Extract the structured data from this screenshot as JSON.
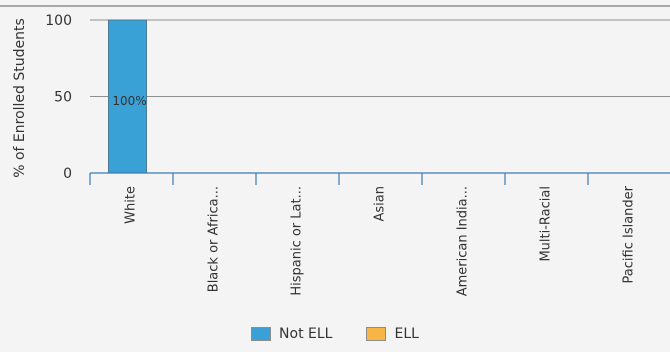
{
  "chart_data": {
    "type": "bar",
    "categories": [
      "White",
      "Black or Africa...",
      "Hispanic or Lat...",
      "Asian",
      "American India...",
      "Multi-Racial",
      "Pacific Islander"
    ],
    "series": [
      {
        "name": "Not ELL",
        "values": [
          100,
          0,
          0,
          0,
          0,
          0,
          0
        ],
        "color": "#3aa1d6"
      },
      {
        "name": "ELL",
        "values": [
          0,
          0,
          0,
          0,
          0,
          0,
          0
        ],
        "color": "#f6b545"
      }
    ],
    "data_labels": [
      "100%",
      "",
      "",
      "",
      "",
      "",
      ""
    ],
    "ylabel": "% of Enrolled Students",
    "xlabel": "",
    "ylim": [
      0,
      100
    ],
    "yticks": [
      0,
      50,
      100
    ],
    "stacked": true,
    "grid": true,
    "legend_position": "bottom"
  },
  "legend": {
    "items": [
      {
        "label": "Not ELL",
        "color": "#3aa1d6"
      },
      {
        "label": "ELL",
        "color": "#f6b545"
      }
    ]
  }
}
